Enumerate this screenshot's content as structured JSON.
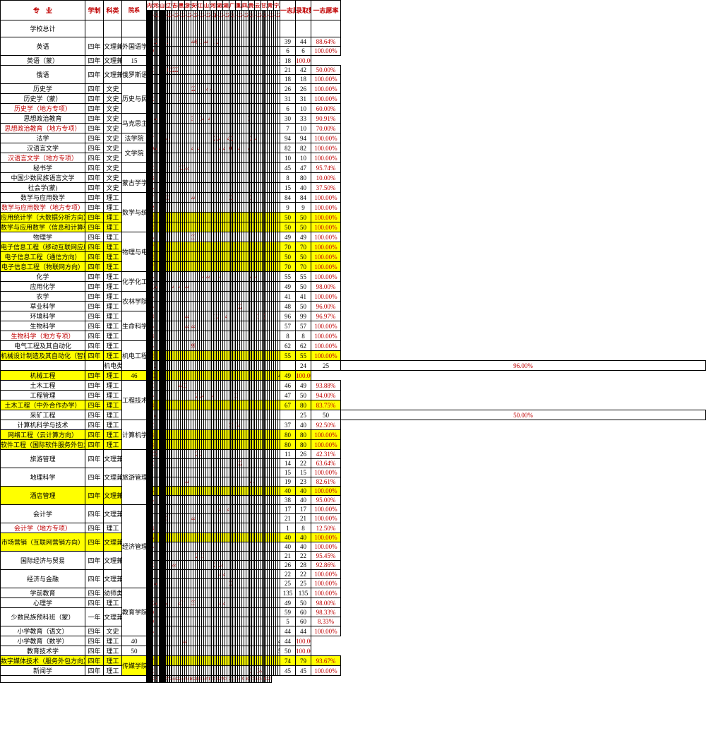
{
  "headers": {
    "major": "专　业",
    "sys": "学制",
    "type": "科类",
    "dept": "院系",
    "provinces": [
      "内蒙",
      "河北",
      "山西",
      "辽宁",
      "吉林",
      "黑龙江",
      "浙江",
      "安徽",
      "江西",
      "山东",
      "河南",
      "湖北",
      "湖南",
      "广西",
      "重庆",
      "四川",
      "贵州",
      "云南",
      "甘肃",
      "青海",
      "宁夏"
    ],
    "first": "一志愿数",
    "admit": "录取数",
    "rate": "一志愿率",
    "school_total": "学校总计"
  },
  "sub_headers": [
    "一志愿",
    "二志愿",
    "三志愿",
    "四志愿",
    "五志愿",
    "六志愿",
    "调剂",
    "征一",
    "征二"
  ],
  "col_counts": [
    9,
    5,
    9,
    6,
    3,
    3,
    3,
    3,
    3,
    3,
    4,
    3,
    3,
    5,
    3,
    3,
    5,
    3,
    5,
    3,
    3
  ],
  "rows": [
    {
      "m": "英语",
      "s": "四年",
      "t": "文理兼招",
      "d": "外国语学院",
      "dr": 2,
      "c": {
        "4": "15",
        "7": "1",
        "13": "16",
        "14": "2",
        "15": "2",
        "16": "1",
        "19": "4",
        "21": "3",
        "22": "1",
        "24": "1",
        "28": "2",
        "29": "1",
        "42": "4",
        "43": "4",
        "44": "6",
        "46": "3",
        "47": "1",
        "48": "4",
        "49": "4",
        "53": "1",
        "55": "2"
      },
      "f": "39",
      "a": "44",
      "r": "88.64%"
    },
    {
      "c": {
        "4": "6",
        "13": "6"
      },
      "f": "6",
      "a": "6",
      "r": "100.00%"
    },
    {
      "m": "英语（蒙）",
      "s": "四年",
      "t": "文理兼招",
      "c": {
        "4": "15",
        "13": "15",
        "22": "1",
        "23": "1",
        "24": "1",
        "25": "1"
      },
      "f": "18",
      "a": "18",
      "r": "100.00%"
    },
    {
      "m": "俄语",
      "s": "四年",
      "t": "文理兼招",
      "d": "俄罗斯语言与文化学院",
      "dr": 2,
      "c": {
        "4": "17",
        "5": "1",
        "7": "1",
        "10": "8",
        "12": "8",
        "13": "35",
        "28": "0",
        "29": "1",
        "30": "2",
        "31": "2",
        "32": "3",
        "33": "2",
        "34": "2",
        "35": "2"
      },
      "f": "21",
      "a": "42",
      "r": "50.00%"
    },
    {
      "c": {
        "4": "18",
        "13": "18"
      },
      "f": "18",
      "a": "18",
      "r": "100.00%"
    },
    {
      "m": "历史学",
      "s": "四年",
      "t": "文史",
      "d": "历史与民族文化学院",
      "dr": 3,
      "c": {
        "4": "17",
        "13": "17",
        "21": "2",
        "23": "2",
        "24": "1",
        "25": "1",
        "42": "2",
        "43": "2",
        "49": "4",
        "51": "4"
      },
      "f": "26",
      "a": "26",
      "r": "100.00%"
    },
    {
      "m": "历史学（蒙）",
      "s": "四年",
      "t": "文史",
      "c": {
        "4": "29",
        "13": "29",
        "24": "1",
        "25": "1",
        "27": "1",
        "36": "1"
      },
      "f": "31",
      "a": "31",
      "r": "100.00%"
    },
    {
      "m": "历史学（地方专项）",
      "s": "四年",
      "t": "文史",
      "cls": "redrow",
      "c": {
        "4": "6",
        "11": "4",
        "13": "10"
      },
      "f": "6",
      "a": "10",
      "r": "60.00%"
    },
    {
      "m": "思想政治教育",
      "s": "四年",
      "t": "文史",
      "d": "马克思主义学院",
      "dr": 2,
      "c": {
        "4": "18",
        "13": "18",
        "14": "4",
        "15": "4",
        "42": "3",
        "46": "3",
        "47": "4",
        "50": "4",
        "67": "1",
        "72": "3"
      },
      "f": "30",
      "a": "33",
      "r": "90.91%"
    },
    {
      "m": "思想政治教育（地方专项）",
      "s": "四年",
      "t": "文史",
      "cls": "redrow",
      "c": {
        "4": "7",
        "11": "3",
        "13": "10"
      },
      "f": "7",
      "a": "10",
      "r": "70.00%"
    },
    {
      "m": "法学",
      "s": "四年",
      "t": "文史",
      "d": "法学院",
      "c": {
        "4": "74",
        "13": "74",
        "21": "2",
        "24": "2",
        "27": "4",
        "30": "4",
        "53": "2",
        "55": "2",
        "56": "4",
        "60": "4",
        "61": "2",
        "62": "2",
        "63": "2",
        "73": "2",
        "74": "4",
        "77": "4"
      },
      "f": "94",
      "a": "94",
      "r": "100.00%"
    },
    {
      "m": "汉语言文学",
      "s": "四年",
      "t": "文史",
      "d": "文学院",
      "dr": 2,
      "c": {
        "4": "60",
        "13": "60",
        "14": "4",
        "15": "4",
        "42": "4",
        "45": "4",
        "56": "4",
        "58": "4",
        "61": "6",
        "62": "6",
        "67": "4",
        "72": "4"
      },
      "f": "82",
      "a": "82",
      "r": "100.00%"
    },
    {
      "m": "汉语言文学（地方专项）",
      "s": "四年",
      "t": "文史",
      "cls": "redrow",
      "c": {
        "4": "10",
        "13": "10"
      },
      "f": "10",
      "a": "10",
      "r": "100.00%"
    },
    {
      "m": "秘书学",
      "s": "四年",
      "t": "文史",
      "d": "",
      "c": {
        "4": "38",
        "13": "38",
        "16": "2",
        "21": "2",
        "36": "1",
        "37": "2",
        "38": "3",
        "39": "4",
        "40": "4"
      },
      "f": "45",
      "a": "47",
      "r": "95.74%"
    },
    {
      "m": "中国少数民族语言文学",
      "s": "四年",
      "t": "文史",
      "d": "蒙古学学院",
      "dr": 2,
      "c": {
        "4": "8",
        "5": "1",
        "9": "1",
        "10": "70",
        "13": "80"
      },
      "f": "8",
      "a": "80",
      "r": "10.00%"
    },
    {
      "m": "社会学(蒙)",
      "s": "四年",
      "t": "文史",
      "c": {
        "4": "15",
        "11": "25",
        "13": "40"
      },
      "f": "15",
      "a": "40",
      "r": "37.50%"
    },
    {
      "m": "数学与应用数学",
      "s": "四年",
      "t": "理工",
      "d": "数学与统计学院",
      "dr": 4,
      "c": {
        "4": "71",
        "13": "71",
        "27": "3",
        "29": "3",
        "42": "4",
        "43": "4",
        "61": "3",
        "62": "3",
        "63": "3",
        "73": "3"
      },
      "f": "84",
      "a": "84",
      "r": "100.00%"
    },
    {
      "m": "数学与应用数学（地方专项）",
      "s": "四年",
      "t": "理工",
      "cls": "redrow",
      "c": {
        "4": "9",
        "13": "9"
      },
      "f": "9",
      "a": "9",
      "r": "100.00%"
    },
    {
      "m": "应用统计学（大数据分析方向）",
      "s": "四年",
      "t": "理工",
      "cls": "yellow",
      "c": {
        "4": "50",
        "13": "50"
      },
      "f": "50",
      "a": "50",
      "r": "100.00%"
    },
    {
      "m": "数学与应用数学（信息和计算科学）",
      "s": "四年",
      "t": "理工",
      "cls": "yellow",
      "c": {
        "4": "50",
        "13": "50"
      },
      "f": "50",
      "a": "50",
      "r": "100.00%"
    },
    {
      "m": "物理学",
      "s": "四年",
      "t": "理工",
      "d": "物理与电子信息学院",
      "dr": 4,
      "c": {
        "4": "46",
        "13": "46",
        "42": "3",
        "43": "3"
      },
      "f": "49",
      "a": "49",
      "r": "100.00%"
    },
    {
      "m": "电子信息工程（移动互联网应用方向）",
      "s": "四年",
      "t": "理工",
      "cls": "yellow",
      "c": {
        "4": "70",
        "13": "70"
      },
      "f": "70",
      "a": "70",
      "r": "100.00%"
    },
    {
      "m": "电子信息工程（通信方向）",
      "s": "四年",
      "t": "理工",
      "cls": "yellow",
      "c": {
        "4": "50",
        "13": "50"
      },
      "f": "50",
      "a": "50",
      "r": "100.00%"
    },
    {
      "m": "电子信息工程（物联网方向）",
      "s": "四年",
      "t": "理工",
      "cls": "yellow",
      "c": {
        "4": "70",
        "13": "70"
      },
      "f": "70",
      "a": "70",
      "r": "100.00%"
    },
    {
      "m": "化学",
      "s": "四年",
      "t": "理工",
      "d": "化学化工学院",
      "dr": 2,
      "c": {
        "4": "43",
        "13": "43",
        "47": "4",
        "49": "4",
        "50": "4",
        "56": "4",
        "73": "4",
        "77": "4"
      },
      "f": "55",
      "a": "55",
      "r": "100.00%"
    },
    {
      "m": "应用化学",
      "s": "四年",
      "t": "理工",
      "c": {
        "4": "34",
        "13": "34",
        "14": "4",
        "15": "4",
        "16": "3",
        "19": "1",
        "22": "4",
        "33": "4",
        "36": "4",
        "39": "4",
        "40": "4"
      },
      "f": "49",
      "a": "50",
      "r": "98.00%"
    },
    {
      "m": "农学",
      "s": "四年",
      "t": "理工",
      "d": "农林学院",
      "dr": 2,
      "c": {
        "4": "41",
        "13": "41"
      },
      "f": "41",
      "a": "41",
      "r": "100.00%"
    },
    {
      "m": "草业科学",
      "s": "四年",
      "t": "理工",
      "c": {
        "4": "46",
        "7": "1",
        "11": "1",
        "13": "48",
        "67": "2",
        "68": "2"
      },
      "f": "48",
      "a": "50",
      "r": "96.00%"
    },
    {
      "m": "环境科学",
      "s": "四年",
      "t": "理工",
      "d": "生命科学学院",
      "dr": 3,
      "c": {
        "4": "88",
        "13": "88",
        "39": "4",
        "40": "4",
        "53": "1",
        "55": "2",
        "56": "1",
        "59": "4",
        "78": "3",
        "82": "3"
      },
      "f": "96",
      "a": "99",
      "r": "96.97%"
    },
    {
      "m": "生物科学",
      "s": "四年",
      "t": "理工",
      "c": {
        "4": "49",
        "13": "49",
        "39": "4",
        "40": "4",
        "42": "4",
        "43": "4"
      },
      "f": "57",
      "a": "57",
      "r": "100.00%"
    },
    {
      "m": "生物科学（地方专项）",
      "s": "四年",
      "t": "理工",
      "cls": "redrow",
      "c": {
        "4": "8",
        "13": "8"
      },
      "f": "8",
      "a": "8",
      "r": "100.00%"
    },
    {
      "m": "电气工程及其自动化",
      "s": "四年",
      "t": "理工",
      "d": "机电工程学院",
      "dr": 3,
      "c": {
        "4": "48",
        "13": "48",
        "18": "4",
        "22": "4",
        "42": "9",
        "43": "9",
        "67": "1"
      },
      "f": "62",
      "a": "62",
      "r": "100.00%"
    },
    {
      "m": "机械设计制造及其自动化（智能制造方向）",
      "s": "四年",
      "t": "理工",
      "cls": "yellow",
      "c": {
        "4": "55",
        "13": "55"
      },
      "f": "55",
      "a": "55",
      "r": "100.00%"
    },
    {
      "m": "",
      "s": "",
      "t": "机电类",
      "d": "",
      "c": {
        "4": "24",
        "11": "1",
        "13": "25"
      },
      "f": "24",
      "a": "25",
      "r": "96.00%"
    },
    {
      "m": "机械工程",
      "s": "四年",
      "t": "理工",
      "cls": "yellow",
      "c": {
        "4": "46",
        "13": "46",
        "14": "3",
        "15": "3"
      },
      "f": "49",
      "a": "49",
      "r": "100.00%"
    },
    {
      "m": "土木工程",
      "s": "四年",
      "t": "理工",
      "d": "工程技术学院",
      "dr": 4,
      "c": {
        "4": "39",
        "13": "39",
        "23": "0",
        "24": "2",
        "25": "1",
        "26": "3",
        "36": "4",
        "37": "4",
        "38": "3",
        "39": "3"
      },
      "f": "46",
      "a": "49",
      "r": "93.88%"
    },
    {
      "m": "工程管理",
      "s": "四年",
      "t": "理工",
      "c": {
        "4": "41",
        "13": "41",
        "44": "2",
        "46": "2",
        "47": "4",
        "52": "4",
        "64": "1",
        "65": "2",
        "66": "3"
      },
      "f": "47",
      "a": "50",
      "r": "94.00%"
    },
    {
      "m": "土木工程（中外合作办学）",
      "s": "四年",
      "t": "理工",
      "cls": "yellow",
      "c": {
        "4": "67",
        "11": "13",
        "13": "80"
      },
      "f": "67",
      "a": "80",
      "r": "83.75%"
    },
    {
      "m": "采矿工程",
      "s": "四年",
      "t": "理工",
      "d": "",
      "c": {
        "4": "24",
        "10": "8",
        "11": "16",
        "13": "48",
        "21": "1",
        "22": "1"
      },
      "f": "25",
      "a": "50",
      "r": "50.00%"
    },
    {
      "m": "计算机科学与技术",
      "s": "四年",
      "t": "理工",
      "d": "计算机学院",
      "dr": 3,
      "c": {
        "4": "29",
        "13": "29",
        "21": "4",
        "22": "4",
        "61": "3",
        "62": "1",
        "63": "3",
        "66": "3",
        "67": "4"
      },
      "f": "37",
      "a": "40",
      "r": "92.50%"
    },
    {
      "m": "网络工程（云计算方向）",
      "s": "四年",
      "t": "理工",
      "cls": "yellow",
      "c": {
        "4": "80",
        "13": "80"
      },
      "f": "80",
      "a": "80",
      "r": "100.00%"
    },
    {
      "m": "软件工程（国际软件服务外包方向）",
      "s": "四年",
      "t": "理工",
      "cls": "yellow",
      "c": {
        "4": "80",
        "13": "80"
      },
      "f": "80",
      "a": "80",
      "r": "100.00%"
    },
    {
      "m": "旅游管理",
      "s": "四年",
      "t": "文理兼招",
      "d": "旅游管理与地理科学学院",
      "dr": 6,
      "c": {
        "4": "6",
        "7": "1",
        "11": "14",
        "13": "21",
        "14": "3",
        "15": "3",
        "44": "2",
        "46": "2"
      },
      "f": "11",
      "a": "26",
      "r": "42.31%"
    },
    {
      "c": {
        "4": "14",
        "11": "6",
        "13": "20",
        "67": "2",
        "68": "2"
      },
      "f": "14",
      "a": "22",
      "r": "63.64%"
    },
    {
      "m": "地理科学",
      "s": "四年",
      "t": "文理兼招",
      "c": {
        "4": "15",
        "13": "15"
      },
      "f": "15",
      "a": "15",
      "r": "100.00%"
    },
    {
      "c": {
        "4": "15",
        "13": "15",
        "39": "4",
        "40": "4",
        "73": "4",
        "76": "4"
      },
      "f": "19",
      "a": "23",
      "r": "82.61%"
    },
    {
      "m": "酒店管理",
      "s": "四年",
      "t": "文理兼招",
      "cls": "yellow",
      "c": {
        "4": "40",
        "13": "40"
      },
      "f": "40",
      "a": "40",
      "r": "100.00%"
    },
    {
      "c": {
        "4": "38",
        "5": "1",
        "8": "1",
        "13": "40"
      },
      "f": "38",
      "a": "40",
      "r": "95.00%"
    },
    {
      "m": "会计学",
      "s": "四年",
      "t": "文理兼招",
      "d": "经济管理学院",
      "dr": 9,
      "c": {
        "4": "13",
        "13": "13",
        "56": "4",
        "60": "4"
      },
      "f": "17",
      "a": "17",
      "r": "100.00%"
    },
    {
      "c": {
        "4": "14",
        "13": "14",
        "27": "3",
        "30": "3",
        "42": "4",
        "43": "4"
      },
      "f": "21",
      "a": "21",
      "r": "100.00%"
    },
    {
      "m": "会计学（地方专项）",
      "s": "四年",
      "t": "理工",
      "cls": "redrow",
      "c": {
        "4": "1",
        "11": "7",
        "13": "8"
      },
      "f": "1",
      "a": "8",
      "r": "12.50%"
    },
    {
      "m": "市场营销（互联网营销方向）",
      "s": "四年",
      "t": "文理兼招",
      "cls": "yellow",
      "c": {
        "4": "40",
        "13": "40"
      },
      "f": "40",
      "a": "40",
      "r": "100.00%"
    },
    {
      "c": {
        "4": "40",
        "13": "40"
      },
      "f": "40",
      "a": "40",
      "r": "100.00%"
    },
    {
      "m": "国际经济与贸易",
      "s": "四年",
      "t": "文理兼招",
      "c": {
        "4": "19",
        "13": "19",
        "44": "2",
        "46": "1",
        "47": "3"
      },
      "f": "21",
      "a": "22",
      "r": "95.45%"
    },
    {
      "c": {
        "4": "20",
        "13": "20",
        "33": "4",
        "34": "4",
        "53": "2",
        "56": "2",
        "57": "4"
      },
      "f": "26",
      "a": "28",
      "r": "92.86%"
    },
    {
      "m": "经济与金融",
      "s": "四年",
      "t": "文理兼招",
      "c": {
        "4": "18",
        "13": "18",
        "56": "4",
        "58": "4"
      },
      "f": "22",
      "a": "22",
      "r": "100.00%"
    },
    {
      "c": {
        "4": "19",
        "13": "19",
        "14": "4",
        "15": "4",
        "61": "2",
        "62": "2"
      },
      "f": "25",
      "a": "25",
      "r": "100.00%"
    },
    {
      "m": "学前教育",
      "s": "四年",
      "t": "幼师类",
      "d": "教育学院",
      "dr": 5,
      "c": {
        "4": "135",
        "13": "135"
      },
      "f": "135",
      "a": "135",
      "r": "100.00%"
    },
    {
      "m": "心理学",
      "s": "四年",
      "t": "理工",
      "c": {
        "4": "30",
        "13": "30",
        "14": "4",
        "15": "4",
        "27": "4",
        "30": "4",
        "36": "4",
        "37": "3",
        "38": "1",
        "42": "3",
        "43": "3",
        "56": "4",
        "58": "4"
      },
      "f": "49",
      "a": "50",
      "r": "98.00%"
    },
    {
      "m": "少数民族预科班（蒙）",
      "s": "一年",
      "t": "文理兼招",
      "c": {
        "4": "59",
        "5": "1",
        "13": "60"
      },
      "f": "59",
      "a": "60",
      "r": "98.33%"
    },
    {
      "c": {
        "4": "5",
        "11": "55",
        "13": "60"
      },
      "f": "5",
      "a": "60",
      "r": "8.33%"
    },
    {
      "m": "小学教育（语文）",
      "s": "四年",
      "t": "文史",
      "c": {
        "4": "44",
        "13": "44"
      },
      "f": "44",
      "a": "44",
      "r": "100.00%"
    },
    {
      "m": "小学教育（数学）",
      "s": "四年",
      "t": "理工",
      "c": {
        "4": "40",
        "13": "40",
        "39": "4",
        "40": "4"
      },
      "f": "44",
      "a": "44",
      "r": "100.00%"
    },
    {
      "m": "教育技术学",
      "s": "四年",
      "t": "理工",
      "c": {
        "4": "50",
        "13": "50"
      },
      "f": "50",
      "a": "50",
      "r": "100.00%"
    },
    {
      "m": "数字媒体技术（服务外包方向）",
      "s": "四年",
      "t": "理工",
      "d": "传媒学院",
      "dr": 2,
      "cls": "yellow",
      "c": {
        "4": "74",
        "5": "4",
        "6": "1",
        "13": "79"
      },
      "f": "74",
      "a": "79",
      "r": "93.67%"
    },
    {
      "m": "新闻学",
      "s": "四年",
      "t": "理工",
      "c": {
        "4": "38",
        "13": "38",
        "73": "3",
        "78": "3",
        "79": "4",
        "80": "4"
      },
      "f": "45",
      "a": "45",
      "r": "100.00%"
    }
  ],
  "totals": [
    "2847",
    "9",
    "7",
    "2",
    "",
    "8",
    "55",
    "223",
    "2847",
    "25",
    "18",
    "25",
    "1",
    "",
    "1",
    "",
    "28",
    "20",
    "8",
    "1",
    "3",
    "8",
    "3",
    "2",
    "5",
    "7",
    "4",
    "2",
    "2",
    "4",
    "4",
    "2",
    "2",
    "4",
    "4",
    "59",
    "48",
    "19",
    "6",
    "24",
    "1",
    "13",
    "10",
    "11",
    "4",
    "5",
    "15",
    "17",
    "10",
    "11",
    "",
    "1",
    "24",
    "5",
    "9",
    "3",
    "",
    "20",
    "12",
    "4",
    "4",
    "",
    "31",
    "4",
    "",
    "9",
    "",
    "8",
    "2",
    "",
    "7",
    "2",
    "3",
    "13",
    "4",
    "3",
    "4",
    "",
    "8",
    "8",
    "2",
    "2905",
    "3262"
  ]
}
